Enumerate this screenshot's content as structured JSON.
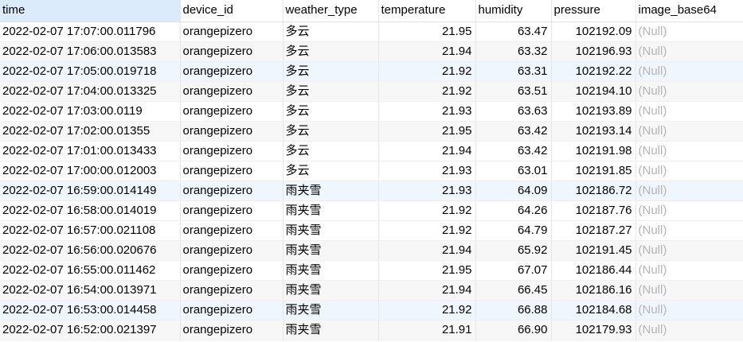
{
  "columns": [
    {
      "key": "time",
      "label": "time"
    },
    {
      "key": "device_id",
      "label": "device_id"
    },
    {
      "key": "weather_type",
      "label": "weather_type"
    },
    {
      "key": "temperature",
      "label": "temperature"
    },
    {
      "key": "humidity",
      "label": "humidity"
    },
    {
      "key": "pressure",
      "label": "pressure"
    },
    {
      "key": "image_base64",
      "label": "image_base64"
    }
  ],
  "rows": [
    {
      "time": "2022-02-07 17:07:00.011796",
      "device_id": "orangepizero",
      "weather_type": "多云",
      "temperature": "21.95",
      "humidity": "63.47",
      "pressure": "102192.09",
      "image_base64": "(Null)"
    },
    {
      "time": "2022-02-07 17:06:00.013583",
      "device_id": "orangepizero",
      "weather_type": "多云",
      "temperature": "21.94",
      "humidity": "63.32",
      "pressure": "102196.93",
      "image_base64": "(Null)"
    },
    {
      "time": "2022-02-07 17:05:00.019718",
      "device_id": "orangepizero",
      "weather_type": "多云",
      "temperature": "21.92",
      "humidity": "63.31",
      "pressure": "102192.22",
      "image_base64": "(Null)"
    },
    {
      "time": "2022-02-07 17:04:00.013325",
      "device_id": "orangepizero",
      "weather_type": "多云",
      "temperature": "21.92",
      "humidity": "63.51",
      "pressure": "102194.10",
      "image_base64": "(Null)"
    },
    {
      "time": "2022-02-07 17:03:00.0119",
      "device_id": "orangepizero",
      "weather_type": "多云",
      "temperature": "21.93",
      "humidity": "63.63",
      "pressure": "102193.89",
      "image_base64": "(Null)"
    },
    {
      "time": "2022-02-07 17:02:00.01355",
      "device_id": "orangepizero",
      "weather_type": "多云",
      "temperature": "21.95",
      "humidity": "63.42",
      "pressure": "102193.14",
      "image_base64": "(Null)"
    },
    {
      "time": "2022-02-07 17:01:00.013433",
      "device_id": "orangepizero",
      "weather_type": "多云",
      "temperature": "21.94",
      "humidity": "63.42",
      "pressure": "102191.98",
      "image_base64": "(Null)"
    },
    {
      "time": "2022-02-07 17:00:00.012003",
      "device_id": "orangepizero",
      "weather_type": "多云",
      "temperature": "21.93",
      "humidity": "63.01",
      "pressure": "102191.85",
      "image_base64": "(Null)"
    },
    {
      "time": "2022-02-07 16:59:00.014149",
      "device_id": "orangepizero",
      "weather_type": "雨夹雪",
      "temperature": "21.93",
      "humidity": "64.09",
      "pressure": "102186.72",
      "image_base64": "(Null)"
    },
    {
      "time": "2022-02-07 16:58:00.014019",
      "device_id": "orangepizero",
      "weather_type": "雨夹雪",
      "temperature": "21.92",
      "humidity": "64.26",
      "pressure": "102187.76",
      "image_base64": "(Null)"
    },
    {
      "time": "2022-02-07 16:57:00.021108",
      "device_id": "orangepizero",
      "weather_type": "雨夹雪",
      "temperature": "21.92",
      "humidity": "64.79",
      "pressure": "102187.27",
      "image_base64": "(Null)"
    },
    {
      "time": "2022-02-07 16:56:00.020676",
      "device_id": "orangepizero",
      "weather_type": "雨夹雪",
      "temperature": "21.94",
      "humidity": "65.92",
      "pressure": "102191.45",
      "image_base64": "(Null)"
    },
    {
      "time": "2022-02-07 16:55:00.011462",
      "device_id": "orangepizero",
      "weather_type": "雨夹雪",
      "temperature": "21.95",
      "humidity": "67.07",
      "pressure": "102186.44",
      "image_base64": "(Null)"
    },
    {
      "time": "2022-02-07 16:54:00.013971",
      "device_id": "orangepizero",
      "weather_type": "雨夹雪",
      "temperature": "21.94",
      "humidity": "66.45",
      "pressure": "102186.16",
      "image_base64": "(Null)"
    },
    {
      "time": "2022-02-07 16:53:00.014458",
      "device_id": "orangepizero",
      "weather_type": "雨夹雪",
      "temperature": "21.92",
      "humidity": "66.88",
      "pressure": "102184.68",
      "image_base64": "(Null)"
    },
    {
      "time": "2022-02-07 16:52:00.021397",
      "device_id": "orangepizero",
      "weather_type": "雨夹雪",
      "temperature": "21.91",
      "humidity": "66.90",
      "pressure": "102179.93",
      "image_base64": "(Null)"
    }
  ],
  "colors": {
    "selected_header": "#dcebfb",
    "row_alt": "#f7f7f7",
    "row_highlight": "#f0f6fd",
    "null_text": "#b4b4b4"
  }
}
